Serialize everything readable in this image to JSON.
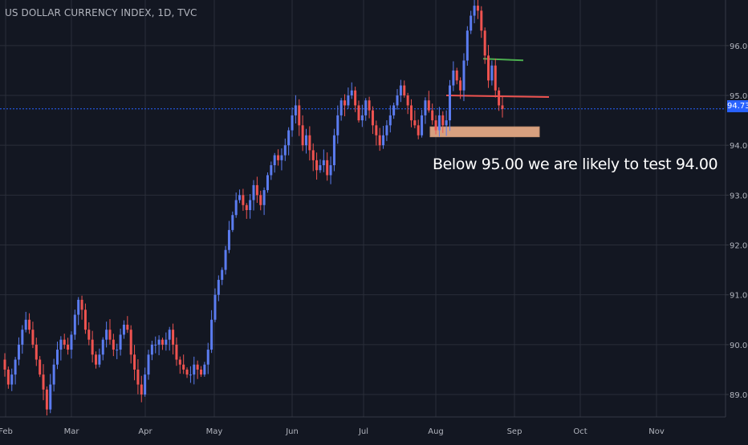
{
  "chart_data": {
    "type": "candlestick",
    "title": "US DOLLAR CURRENCY INDEX, 1D, TVC",
    "annotation": "Below 95.00 we are likely to test 94.00",
    "current_price": 94.73,
    "current_price_label": "94.73",
    "ylim": [
      88.55,
      96.85
    ],
    "y_ticks": [
      {
        "value": 89.0,
        "label": "89.00"
      },
      {
        "value": 90.0,
        "label": "90.00"
      },
      {
        "value": 91.0,
        "label": "91.00"
      },
      {
        "value": 92.0,
        "label": "92.00"
      },
      {
        "value": 93.0,
        "label": "93.00"
      },
      {
        "value": 94.0,
        "label": "94.00"
      },
      {
        "value": 95.0,
        "label": "95.00"
      },
      {
        "value": 96.0,
        "label": "96.00"
      }
    ],
    "x_ticks": [
      "Feb",
      "Mar",
      "Apr",
      "May",
      "Jun",
      "Jul",
      "Aug",
      "Sep",
      "Oct",
      "Nov"
    ],
    "colors": {
      "background": "#131722",
      "grid": "#2a2e39",
      "up": "#5b7cf0",
      "down": "#ef5350",
      "price_line": "#2962ff",
      "axis_text": "#b2b5be",
      "resistance_line": "#ef5350",
      "green_line": "#4caf50",
      "support_zone_fill": "#d7a07f",
      "support_zone_border": "#c49070"
    },
    "levels": {
      "resistance": 95.0,
      "green_level": 95.72,
      "support_zone": [
        94.17,
        94.37
      ]
    },
    "closes": [
      89.5,
      89.2,
      89.4,
      89.7,
      90.0,
      90.3,
      90.5,
      90.3,
      90.0,
      89.7,
      89.4,
      89.1,
      88.7,
      89.2,
      89.6,
      89.9,
      90.1,
      90.0,
      89.9,
      90.2,
      90.6,
      90.9,
      90.7,
      90.3,
      90.1,
      89.8,
      89.6,
      89.8,
      90.1,
      90.3,
      90.1,
      89.9,
      89.9,
      90.2,
      90.4,
      90.3,
      89.8,
      89.5,
      89.2,
      89.0,
      89.4,
      89.8,
      90.0,
      90.0,
      90.1,
      90.0,
      90.1,
      90.3,
      90.0,
      89.7,
      89.6,
      89.5,
      89.4,
      89.4,
      89.6,
      89.5,
      89.4,
      89.6,
      89.9,
      90.5,
      91.0,
      91.3,
      91.5,
      91.9,
      92.3,
      92.6,
      92.9,
      93.0,
      92.8,
      92.7,
      92.9,
      93.2,
      93.0,
      92.8,
      93.1,
      93.4,
      93.6,
      93.8,
      93.7,
      93.8,
      94.0,
      94.3,
      94.6,
      94.8,
      94.4,
      94.0,
      94.2,
      93.9,
      93.7,
      93.5,
      93.6,
      93.7,
      93.4,
      93.6,
      94.2,
      94.6,
      94.9,
      94.8,
      95.0,
      95.1,
      94.8,
      94.5,
      94.6,
      94.9,
      94.7,
      94.4,
      94.2,
      94.0,
      94.2,
      94.4,
      94.6,
      94.8,
      95.0,
      95.2,
      95.0,
      94.8,
      94.5,
      94.4,
      94.2,
      94.6,
      94.9,
      94.7,
      94.5,
      94.3,
      94.6,
      94.4,
      94.5,
      95.2,
      95.5,
      95.3,
      95.1,
      95.7,
      96.3,
      96.6,
      96.8,
      96.7,
      96.3,
      95.8,
      95.3,
      95.6,
      95.1,
      94.8,
      94.73
    ]
  }
}
